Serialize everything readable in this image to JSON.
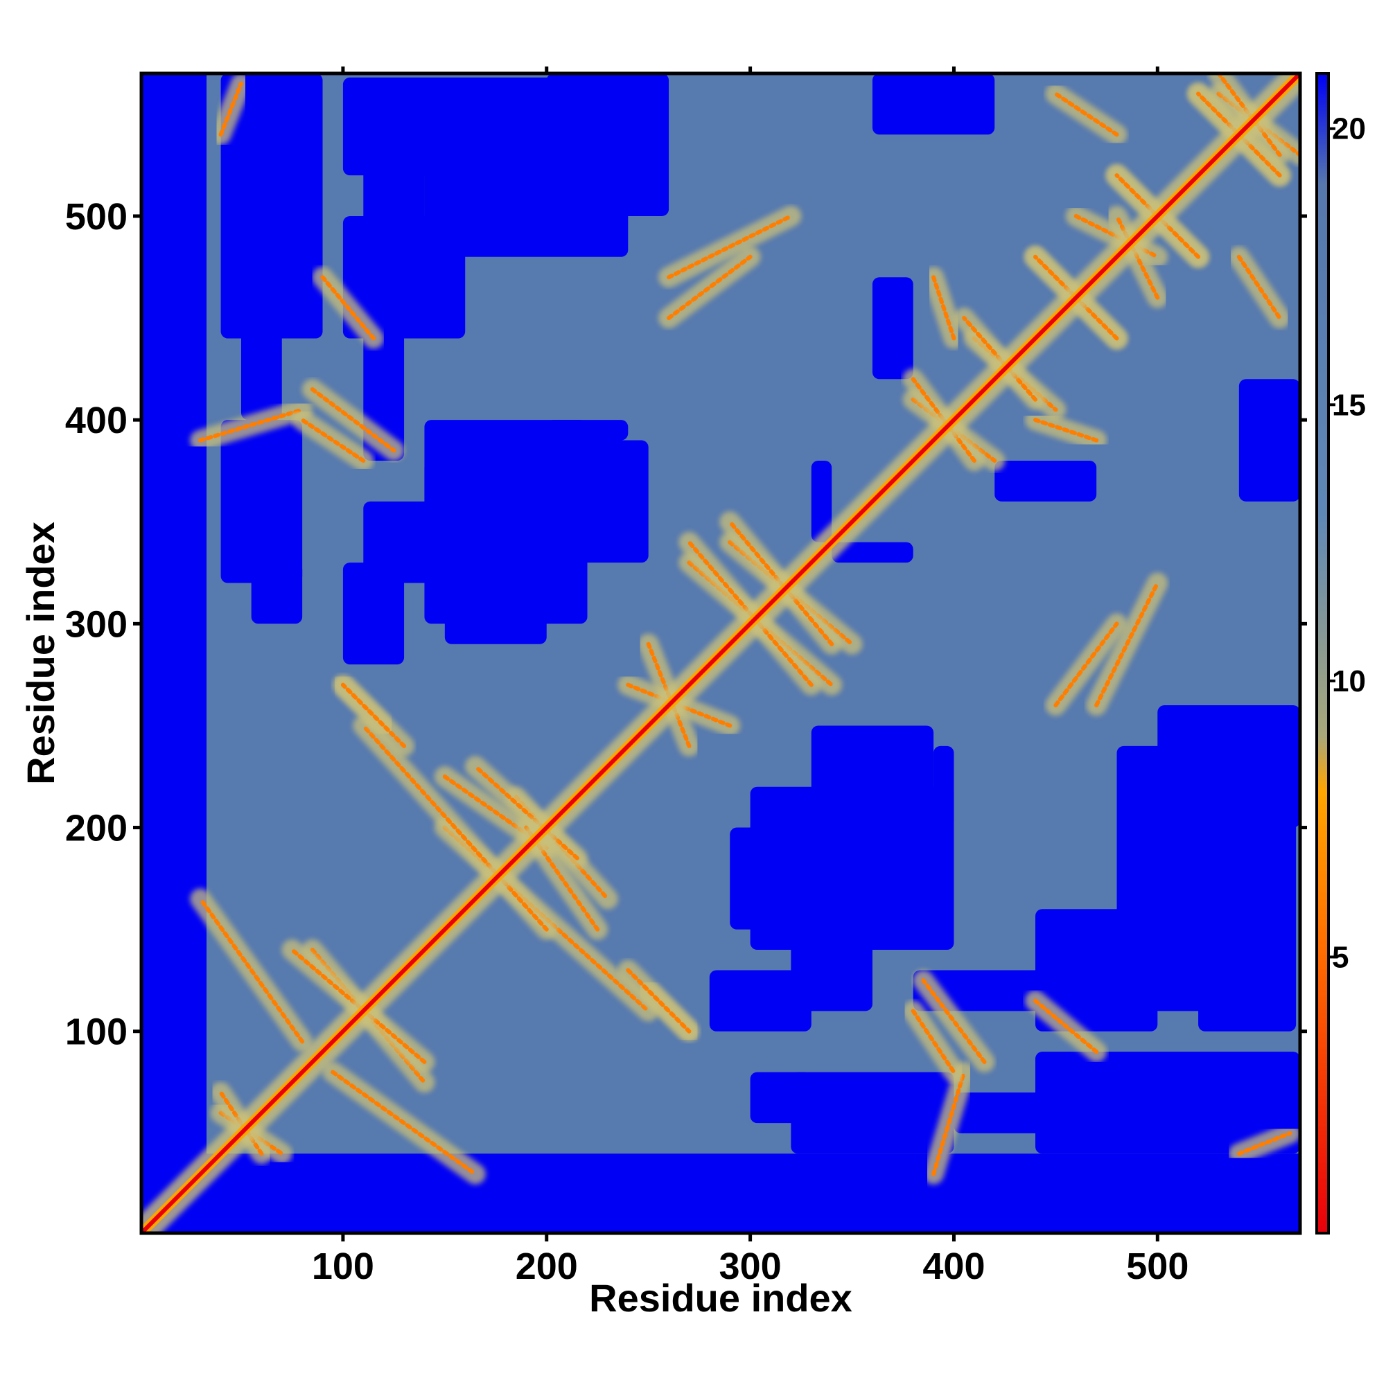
{
  "chart_data": {
    "type": "heatmap",
    "title": "",
    "xlabel": "Residue index",
    "ylabel": "Residue index",
    "xlim": [
      1,
      570
    ],
    "ylim": [
      1,
      570
    ],
    "xticks": [
      100,
      200,
      300,
      400,
      500
    ],
    "yticks": [
      100,
      200,
      300,
      400,
      500
    ],
    "n_residues": 570,
    "diagonal": "distance 0 along x = y",
    "colorbar": {
      "ticks": [
        5,
        10,
        15,
        20
      ],
      "range": [
        0,
        21
      ],
      "stops": [
        {
          "value": 0,
          "color": "#e8000b"
        },
        {
          "value": 5,
          "color": "#ff6a00"
        },
        {
          "value": 8,
          "color": "#ffa500"
        },
        {
          "value": 9,
          "color": "#a9a87a"
        },
        {
          "value": 13,
          "color": "#5f87b6"
        },
        {
          "value": 19,
          "color": "#5577ad"
        },
        {
          "value": 21,
          "color": "#0000f5"
        }
      ]
    },
    "colors": {
      "far": "#0000f5",
      "background": "#5b84b4",
      "near": "#e8000b",
      "mid": "#ffa500",
      "halo": "#c9c07a"
    },
    "background_region": {
      "x_from": 33,
      "y_from": 40,
      "value": 18
    },
    "far_blocks": [
      {
        "x": [
          40,
          90
        ],
        "y": [
          440,
          570
        ],
        "value": 21
      },
      {
        "x": [
          110,
          140
        ],
        "y": [
          470,
          560
        ],
        "value": 21
      },
      {
        "x": [
          140,
          200
        ],
        "y": [
          500,
          560
        ],
        "value": 21
      },
      {
        "x": [
          200,
          260
        ],
        "y": [
          500,
          570
        ],
        "value": 21
      },
      {
        "x": [
          360,
          420
        ],
        "y": [
          540,
          570
        ],
        "value": 21
      },
      {
        "x": [
          140,
          240
        ],
        "y": [
          350,
          380
        ],
        "value": 21
      },
      {
        "x": [
          110,
          150
        ],
        "y": [
          320,
          360
        ],
        "value": 21
      },
      {
        "x": [
          150,
          200
        ],
        "y": [
          290,
          340
        ],
        "value": 21
      },
      {
        "x": [
          55,
          80
        ],
        "y": [
          300,
          330
        ],
        "value": 21
      },
      {
        "x": [
          320,
          400
        ],
        "y": [
          40,
          80
        ],
        "value": 21
      },
      {
        "x": [
          400,
          460
        ],
        "y": [
          50,
          70
        ],
        "value": 21
      },
      {
        "x": [
          440,
          500
        ],
        "y": [
          100,
          160
        ],
        "value": 21
      },
      {
        "x": [
          480,
          540
        ],
        "y": [
          140,
          240
        ],
        "value": 21
      },
      {
        "x": [
          520,
          568
        ],
        "y": [
          100,
          240
        ],
        "value": 21
      },
      {
        "x": [
          300,
          400
        ],
        "y": [
          140,
          220
        ],
        "value": 21
      },
      {
        "x": [
          330,
          390
        ],
        "y": [
          180,
          250
        ],
        "value": 21
      },
      {
        "x": [
          280,
          330
        ],
        "y": [
          100,
          130
        ],
        "value": 21
      },
      {
        "x": [
          380,
          450
        ],
        "y": [
          110,
          130
        ],
        "value": 21
      },
      {
        "x": [
          340,
          380
        ],
        "y": [
          330,
          340
        ],
        "value": 21
      },
      {
        "x": [
          200,
          240
        ],
        "y": [
          390,
          400
        ],
        "value": 21
      },
      {
        "x": [
          420,
          470
        ],
        "y": [
          360,
          380
        ],
        "value": 21
      }
    ],
    "contact_arcs": [
      {
        "from": [
          40,
          60
        ],
        "to": [
          70,
          40
        ],
        "value": 6
      },
      {
        "from": [
          85,
          140
        ],
        "to": [
          140,
          75
        ],
        "value": 6
      },
      {
        "from": [
          95,
          80
        ],
        "to": [
          165,
          30
        ],
        "value": 6
      },
      {
        "from": [
          150,
          200
        ],
        "to": [
          250,
          110
        ],
        "value": 6
      },
      {
        "from": [
          185,
          215
        ],
        "to": [
          230,
          165
        ],
        "value": 6
      },
      {
        "from": [
          150,
          225
        ],
        "to": [
          200,
          190
        ],
        "value": 6
      },
      {
        "from": [
          240,
          270
        ],
        "to": [
          290,
          250
        ],
        "value": 6
      },
      {
        "from": [
          270,
          330
        ],
        "to": [
          340,
          270
        ],
        "value": 6
      },
      {
        "from": [
          290,
          340
        ],
        "to": [
          350,
          290
        ],
        "value": 6
      },
      {
        "from": [
          380,
          410
        ],
        "to": [
          420,
          380
        ],
        "value": 6
      },
      {
        "from": [
          410,
          440
        ],
        "to": [
          450,
          405
        ],
        "value": 6
      },
      {
        "from": [
          440,
          480
        ],
        "to": [
          480,
          440
        ],
        "value": 6
      },
      {
        "from": [
          480,
          520
        ],
        "to": [
          520,
          480
        ],
        "value": 6
      },
      {
        "from": [
          520,
          560
        ],
        "to": [
          560,
          520
        ],
        "value": 6
      },
      {
        "from": [
          85,
          415
        ],
        "to": [
          125,
          385
        ],
        "value": 6
      },
      {
        "from": [
          90,
          470
        ],
        "to": [
          115,
          440
        ],
        "value": 6
      },
      {
        "from": [
          30,
          390
        ],
        "to": [
          80,
          405
        ],
        "value": 6
      },
      {
        "from": [
          260,
          470
        ],
        "to": [
          320,
          500
        ],
        "value": 6
      },
      {
        "from": [
          380,
          110
        ],
        "to": [
          400,
          80
        ],
        "value": 6
      },
      {
        "from": [
          450,
          260
        ],
        "to": [
          480,
          300
        ],
        "value": 6
      },
      {
        "from": [
          460,
          500
        ],
        "to": [
          500,
          480
        ],
        "value": 6
      },
      {
        "from": [
          540,
          480
        ],
        "to": [
          560,
          450
        ],
        "value": 6
      },
      {
        "from": [
          530,
          560
        ],
        "to": [
          570,
          530
        ],
        "value": 6
      },
      {
        "from": [
          100,
          270
        ],
        "to": [
          120,
          250
        ],
        "value": 6
      },
      {
        "from": [
          240,
          130
        ],
        "to": [
          270,
          100
        ],
        "value": 6
      },
      {
        "from": [
          390,
          470
        ],
        "to": [
          400,
          440
        ],
        "value": 6
      },
      {
        "from": [
          540,
          40
        ],
        "to": [
          565,
          50
        ],
        "value": 6
      }
    ]
  }
}
